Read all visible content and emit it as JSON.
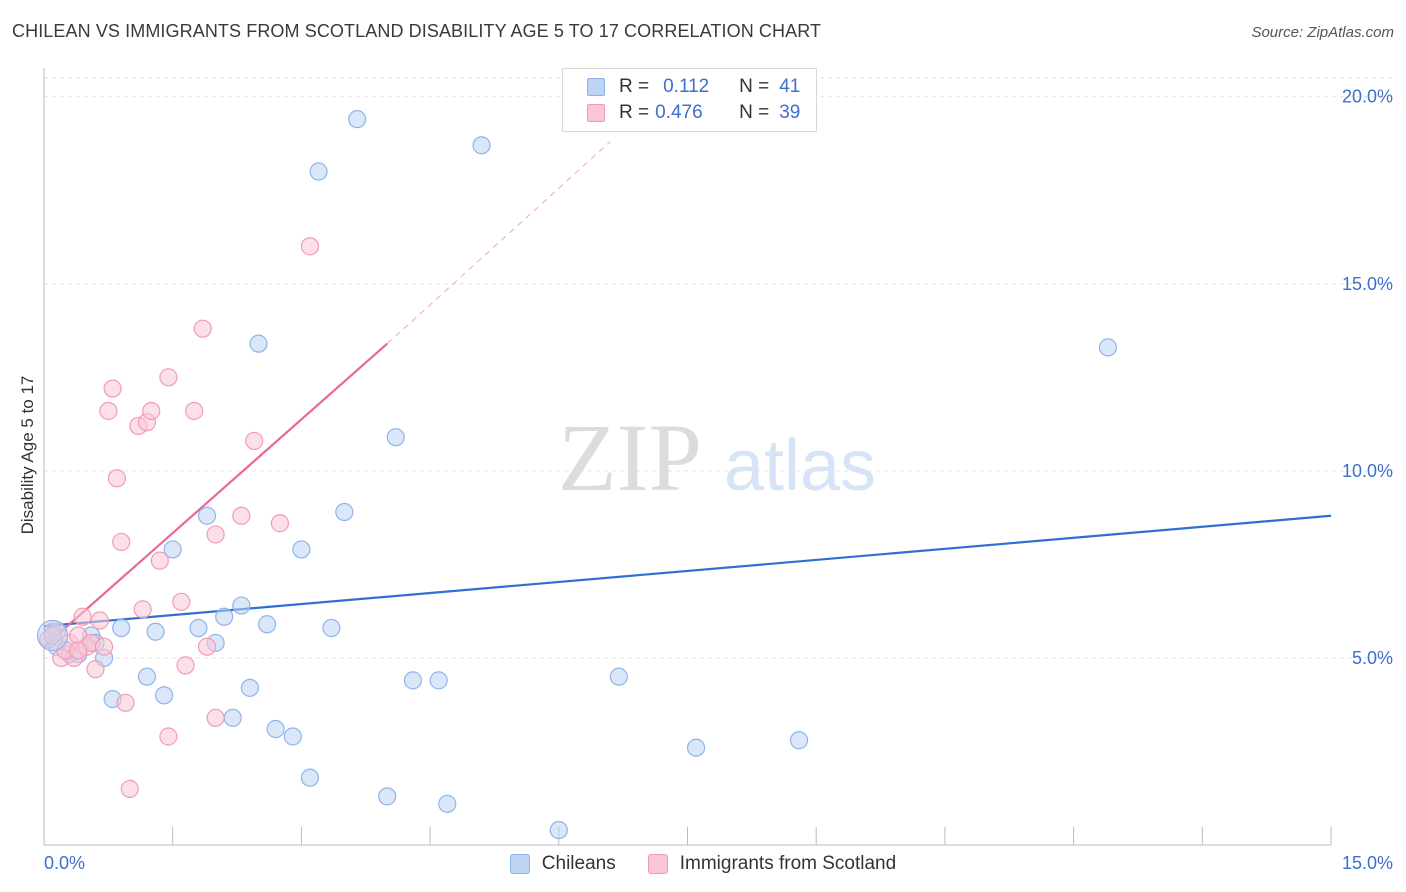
{
  "header": {
    "title": "CHILEAN VS IMMIGRANTS FROM SCOTLAND DISABILITY AGE 5 TO 17 CORRELATION CHART",
    "source": "Source: ZipAtlas.com"
  },
  "watermark": {
    "zip": "ZIP",
    "atlas": "atlas"
  },
  "legend_top": {
    "rows": [
      {
        "r_label": "R =",
        "r_value": "0.112",
        "n_label": "N =",
        "n_value": "41",
        "color": "#8fb4ea",
        "fill": "#bcd3f3"
      },
      {
        "r_label": "R =",
        "r_value": "0.476",
        "n_label": "N =",
        "n_value": "39",
        "color": "#f29bb6",
        "fill": "#fac6d6"
      }
    ]
  },
  "legend_bottom": {
    "items": [
      {
        "label": "Chileans",
        "color": "#8fb4ea",
        "fill": "#bcd3f3"
      },
      {
        "label": "Immigrants from Scotland",
        "color": "#f29bb6",
        "fill": "#fac6d6"
      }
    ]
  },
  "chart_data": {
    "type": "scatter",
    "title": "CHILEAN VS IMMIGRANTS FROM SCOTLAND DISABILITY AGE 5 TO 17 CORRELATION CHART",
    "xlabel": "",
    "ylabel": "Disability Age 5 to 17",
    "xlim": [
      0,
      15
    ],
    "ylim": [
      0,
      20.5
    ],
    "x_tick_labels": [
      "0.0%",
      "15.0%"
    ],
    "y_tick_labels": [
      "5.0%",
      "10.0%",
      "15.0%",
      "20.0%"
    ],
    "y_ticks": [
      5,
      10,
      15,
      20
    ],
    "x_ticks_minor": [
      0,
      1.5,
      3,
      4.5,
      6,
      7.5,
      9,
      10.5,
      12,
      13.5,
      15
    ],
    "grid": true,
    "legend_position": "top-center",
    "series": [
      {
        "name": "Chileans",
        "color": "#8fb4ea",
        "fill": "#bcd3f3",
        "trend_color": "#2f6fd1",
        "trend": {
          "x": [
            0,
            15
          ],
          "y": [
            5.85,
            8.8
          ]
        },
        "points": [
          [
            0.1,
            5.7
          ],
          [
            0.3,
            5.1
          ],
          [
            0.4,
            5.1
          ],
          [
            0.55,
            5.6
          ],
          [
            0.7,
            5.0
          ],
          [
            0.6,
            5.4
          ],
          [
            0.9,
            5.8
          ],
          [
            0.8,
            3.9
          ],
          [
            1.2,
            4.5
          ],
          [
            1.3,
            5.7
          ],
          [
            1.5,
            7.9
          ],
          [
            1.4,
            4.0
          ],
          [
            1.8,
            5.8
          ],
          [
            2.0,
            5.4
          ],
          [
            1.9,
            8.8
          ],
          [
            2.1,
            6.1
          ],
          [
            2.2,
            3.4
          ],
          [
            2.3,
            6.4
          ],
          [
            2.4,
            4.2
          ],
          [
            2.5,
            13.4
          ],
          [
            2.6,
            5.9
          ],
          [
            2.7,
            3.1
          ],
          [
            2.9,
            2.9
          ],
          [
            3.0,
            7.9
          ],
          [
            3.1,
            1.8
          ],
          [
            3.2,
            18.0
          ],
          [
            3.35,
            5.8
          ],
          [
            3.5,
            8.9
          ],
          [
            3.65,
            19.4
          ],
          [
            4.0,
            1.3
          ],
          [
            4.1,
            10.9
          ],
          [
            4.3,
            4.4
          ],
          [
            4.6,
            4.4
          ],
          [
            4.7,
            1.1
          ],
          [
            5.1,
            18.7
          ],
          [
            6.0,
            0.4
          ],
          [
            6.7,
            4.5
          ],
          [
            7.6,
            2.6
          ],
          [
            8.8,
            2.8
          ],
          [
            12.4,
            13.3
          ],
          [
            0.15,
            5.3
          ]
        ]
      },
      {
        "name": "Immigrants from Scotland",
        "color": "#f29bb6",
        "fill": "#fac6d6",
        "trend_color": "#e8689a",
        "trend": {
          "x": [
            0,
            4.0
          ],
          "y": [
            5.3,
            13.4
          ]
        },
        "trend_dashed": {
          "x": [
            4.0,
            6.6
          ],
          "y": [
            13.4,
            18.8
          ]
        },
        "points": [
          [
            0.05,
            5.5
          ],
          [
            0.15,
            5.7
          ],
          [
            0.2,
            5.0
          ],
          [
            0.3,
            5.4
          ],
          [
            0.35,
            5.0
          ],
          [
            0.4,
            5.6
          ],
          [
            0.45,
            6.1
          ],
          [
            0.5,
            5.3
          ],
          [
            0.55,
            5.4
          ],
          [
            0.6,
            4.7
          ],
          [
            0.65,
            6.0
          ],
          [
            0.7,
            5.3
          ],
          [
            0.75,
            11.6
          ],
          [
            0.8,
            12.2
          ],
          [
            0.85,
            9.8
          ],
          [
            0.9,
            8.1
          ],
          [
            0.95,
            3.8
          ],
          [
            1.0,
            1.5
          ],
          [
            1.1,
            11.2
          ],
          [
            1.15,
            6.3
          ],
          [
            1.2,
            11.3
          ],
          [
            1.25,
            11.6
          ],
          [
            1.35,
            7.6
          ],
          [
            1.45,
            2.9
          ],
          [
            1.45,
            12.5
          ],
          [
            1.6,
            6.5
          ],
          [
            1.65,
            4.8
          ],
          [
            1.75,
            11.6
          ],
          [
            1.85,
            13.8
          ],
          [
            1.9,
            5.3
          ],
          [
            2.0,
            8.3
          ],
          [
            2.0,
            3.4
          ],
          [
            2.3,
            8.8
          ],
          [
            2.45,
            10.8
          ],
          [
            2.75,
            8.6
          ],
          [
            3.1,
            16.0
          ],
          [
            0.25,
            5.2
          ],
          [
            0.1,
            5.6
          ],
          [
            0.4,
            5.2
          ]
        ]
      }
    ]
  }
}
